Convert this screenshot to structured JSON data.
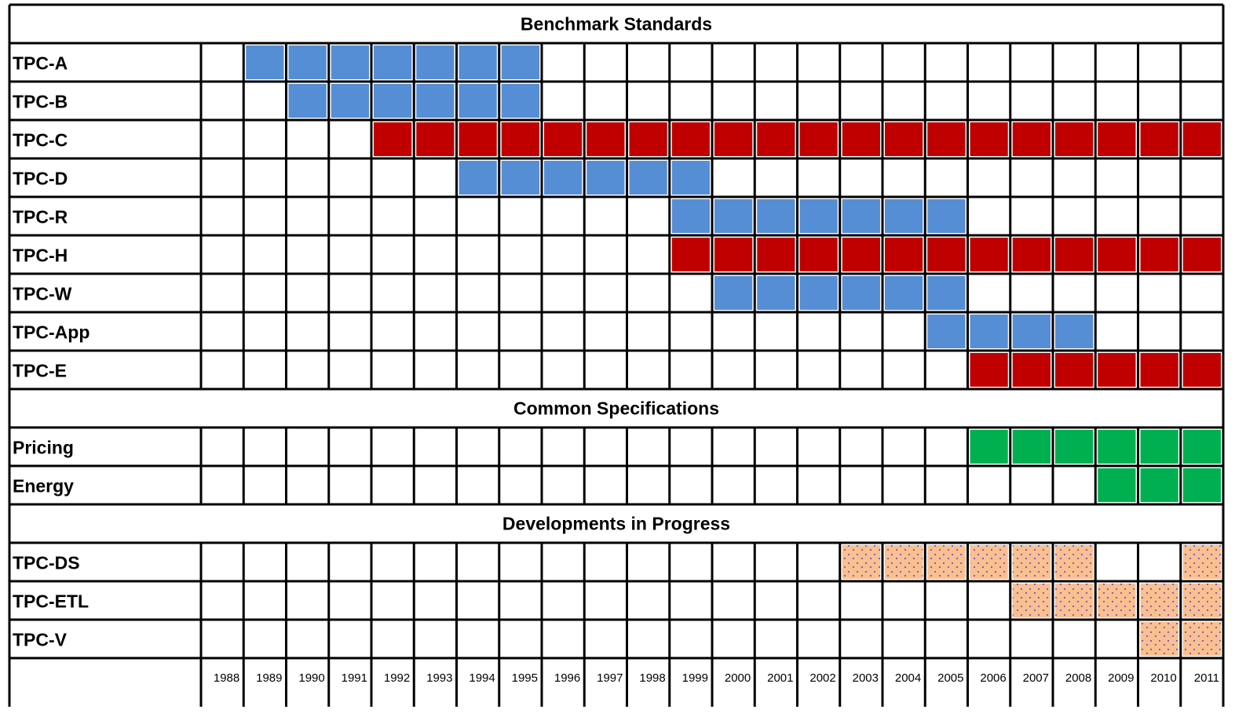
{
  "chart_data": {
    "type": "table",
    "title": "",
    "years": [
      "1988",
      "1989",
      "1990",
      "1991",
      "1992",
      "1993",
      "1994",
      "1995",
      "1996",
      "1997",
      "1998",
      "1999",
      "2000",
      "2001",
      "2002",
      "2003",
      "2004",
      "2005",
      "2006",
      "2007",
      "2008",
      "2009",
      "2010",
      "2011"
    ],
    "colors": {
      "blue": "#558ed5",
      "red": "#c00000",
      "green": "#00b050",
      "orange": "#fac090",
      "dot": "#7f5fbf",
      "grid": "#000000"
    },
    "sections": [
      {
        "title": "Benchmark Standards",
        "rows": [
          {
            "label": "TPC-A",
            "start": 1989,
            "end": 1995,
            "color": "blue"
          },
          {
            "label": "TPC-B",
            "start": 1990,
            "end": 1995,
            "color": "blue"
          },
          {
            "label": "TPC-C",
            "start": 1992,
            "end": 2011,
            "color": "red"
          },
          {
            "label": "TPC-D",
            "start": 1994,
            "end": 1999,
            "color": "blue"
          },
          {
            "label": "TPC-R",
            "start": 1999,
            "end": 2005,
            "color": "blue"
          },
          {
            "label": "TPC-H",
            "start": 1999,
            "end": 2011,
            "color": "red"
          },
          {
            "label": "TPC-W",
            "start": 2000,
            "end": 2005,
            "color": "blue"
          },
          {
            "label": "TPC-App",
            "start": 2005,
            "end": 2008,
            "color": "blue"
          },
          {
            "label": "TPC-E",
            "start": 2006,
            "end": 2011,
            "color": "red"
          }
        ]
      },
      {
        "title": "Common Specifications",
        "rows": [
          {
            "label": "Pricing",
            "start": 2006,
            "end": 2011,
            "color": "green"
          },
          {
            "label": "Energy",
            "start": 2009,
            "end": 2011,
            "color": "green"
          }
        ]
      },
      {
        "title": "Developments in Progress",
        "rows": [
          {
            "label": "TPC-DS",
            "filled_years": [
              2003,
              2004,
              2005,
              2006,
              2007,
              2008,
              2011
            ],
            "color": "orange",
            "pattern": "dotted"
          },
          {
            "label": "TPC-ETL",
            "start": 2007,
            "end": 2011,
            "color": "orange",
            "pattern": "dotted"
          },
          {
            "label": "TPC-V",
            "start": 2010,
            "end": 2011,
            "color": "orange",
            "pattern": "dotted"
          }
        ]
      }
    ]
  }
}
